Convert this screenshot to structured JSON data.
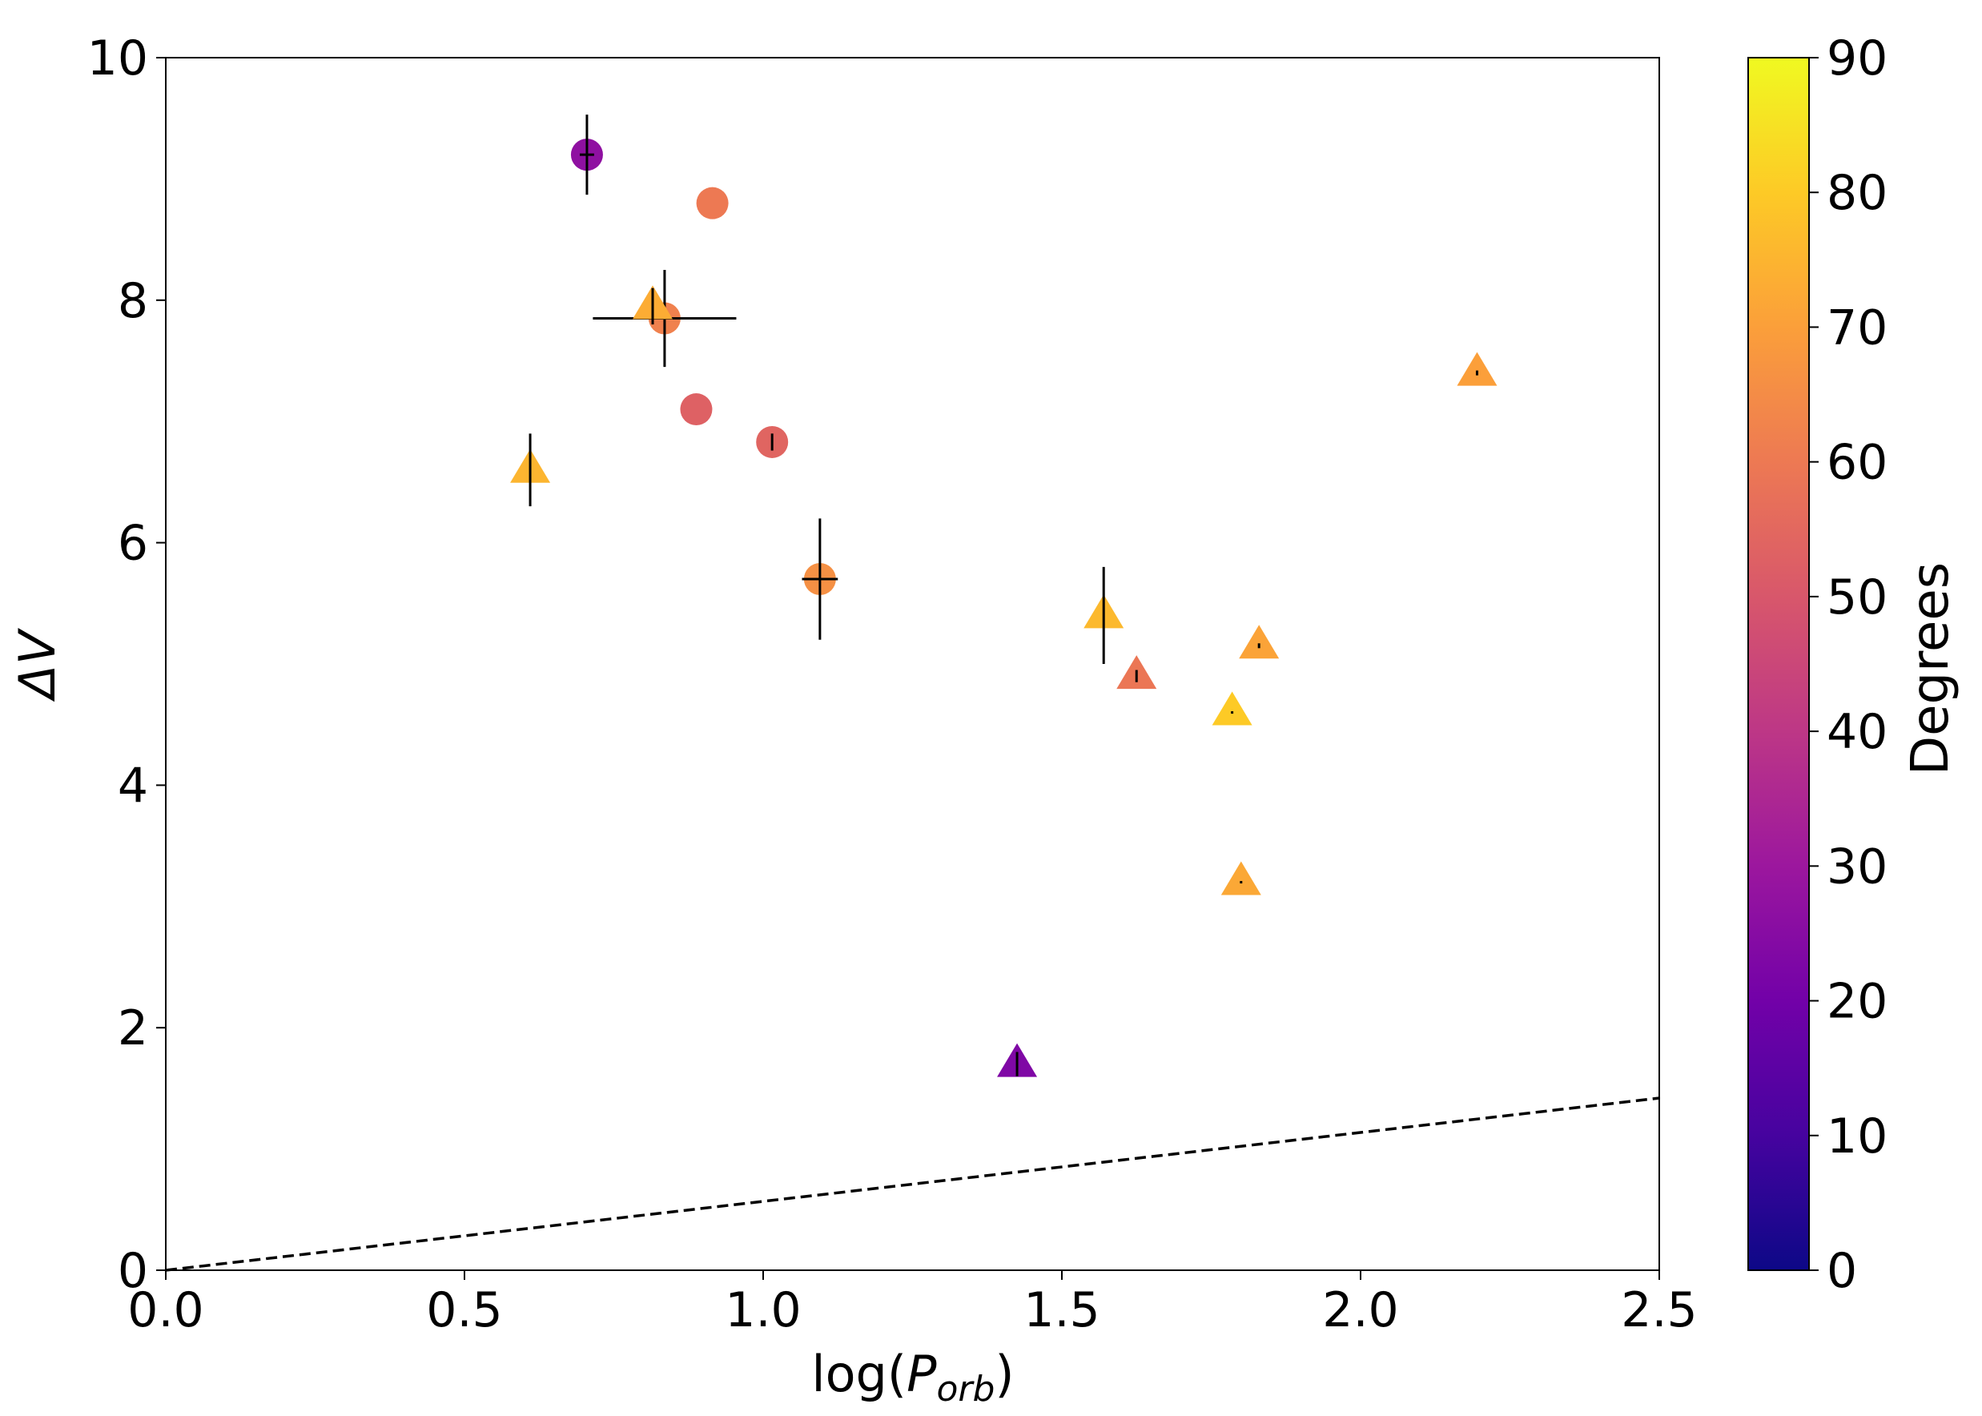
{
  "chart_data": {
    "type": "scatter",
    "xlabel": "log(P_orb)",
    "xlabel_parts": {
      "prefix": "log(",
      "var": "P",
      "sub": "orb",
      "suffix": ")"
    },
    "ylabel": "ΔV",
    "xlim": [
      0.0,
      2.5
    ],
    "ylim": [
      0,
      10
    ],
    "xticks": [
      "0.0",
      "0.5",
      "1.0",
      "1.5",
      "2.0",
      "2.5"
    ],
    "xtick_values": [
      0.0,
      0.5,
      1.0,
      1.5,
      2.0,
      2.5
    ],
    "yticks": [
      "0",
      "2",
      "4",
      "6",
      "8",
      "10"
    ],
    "ytick_values": [
      0,
      2,
      4,
      6,
      8,
      10
    ],
    "grid": false,
    "colorbar": {
      "label": "Degrees",
      "range": [
        0,
        90
      ],
      "ticks": [
        "0",
        "10",
        "20",
        "30",
        "40",
        "50",
        "60",
        "70",
        "80",
        "90"
      ],
      "tick_values": [
        0,
        10,
        20,
        30,
        40,
        50,
        60,
        70,
        80,
        90
      ],
      "colormap": "plasma",
      "stops": [
        "#0d0887",
        "#46039f",
        "#7201a8",
        "#9c179e",
        "#bd3786",
        "#d8576b",
        "#ed7953",
        "#fb9f3a",
        "#fdca26",
        "#f0f921"
      ]
    },
    "reference_line": {
      "style": "dashed",
      "color": "#000000",
      "x": [
        0.0,
        2.5
      ],
      "y": [
        0.0,
        1.42
      ]
    },
    "series": [
      {
        "name": "circles",
        "marker": "circle",
        "points": [
          {
            "x": 0.705,
            "y": 9.2,
            "c": 27,
            "xerr": 0.012,
            "yerr": 0.33
          },
          {
            "x": 0.915,
            "y": 8.8,
            "c": 60,
            "xerr": 0,
            "yerr": 0
          },
          {
            "x": 0.835,
            "y": 7.85,
            "c": 62,
            "xerr": 0.12,
            "yerr": 0.4
          },
          {
            "x": 0.888,
            "y": 7.1,
            "c": 53,
            "xerr": 0,
            "yerr": 0
          },
          {
            "x": 1.015,
            "y": 6.83,
            "c": 54,
            "xerr": 0,
            "yerr": 0.07
          },
          {
            "x": 1.095,
            "y": 5.7,
            "c": 66,
            "xerr": 0.03,
            "yerr": 0.5
          }
        ]
      },
      {
        "name": "triangles",
        "marker": "triangle",
        "points": [
          {
            "x": 0.815,
            "y": 7.95,
            "c": 73,
            "xerr": 0,
            "yerr": 0.15
          },
          {
            "x": 0.61,
            "y": 6.6,
            "c": 75,
            "xerr": 0,
            "yerr": 0.3
          },
          {
            "x": 1.57,
            "y": 5.4,
            "c": 76,
            "xerr": 0,
            "yerr": 0.4
          },
          {
            "x": 1.625,
            "y": 4.9,
            "c": 59,
            "xerr": 0,
            "yerr": 0.05
          },
          {
            "x": 1.83,
            "y": 5.15,
            "c": 71,
            "xerr": 0,
            "yerr": 0.02
          },
          {
            "x": 1.785,
            "y": 4.6,
            "c": 80,
            "xerr": 0,
            "yerr": 0.01
          },
          {
            "x": 1.8,
            "y": 3.2,
            "c": 72,
            "xerr": 0,
            "yerr": 0.01
          },
          {
            "x": 2.195,
            "y": 7.4,
            "c": 70,
            "xerr": 0,
            "yerr": 0.02
          },
          {
            "x": 1.425,
            "y": 1.7,
            "c": 23,
            "xerr": 0,
            "yerr": 0.1
          }
        ]
      }
    ]
  }
}
